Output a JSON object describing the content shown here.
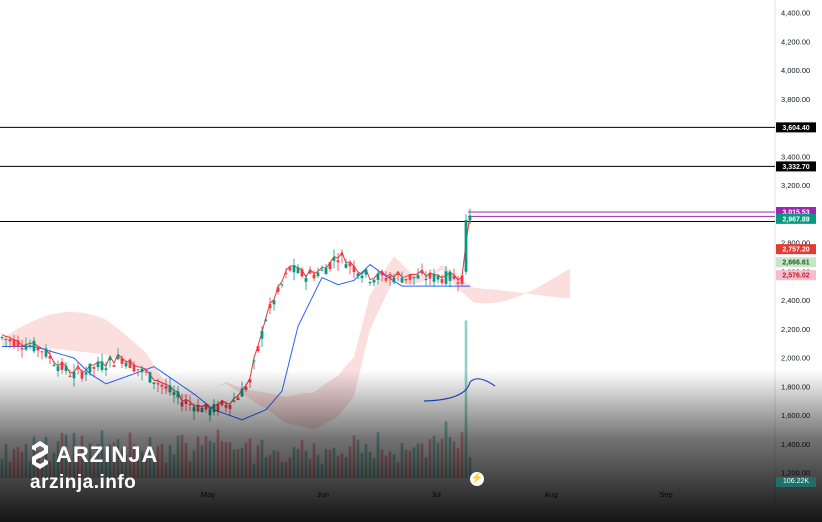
{
  "chart_data": {
    "type": "candlestick",
    "x_labels": [
      "May",
      "Jun",
      "Jul",
      "Aug",
      "Sep"
    ],
    "y_ticks": [
      1200,
      1400,
      1600,
      1800,
      2000,
      2200,
      2400,
      2600,
      2800,
      3000,
      3200,
      3400,
      3600,
      3800,
      4000,
      4200,
      4400
    ],
    "y_tick_labels": [
      "1,200.00",
      "1,400.00",
      "1,600.00",
      "1,800.00",
      "2,000.00",
      "2,200.00",
      "2,400.00",
      "2,600.00",
      "2,800.00",
      "3,000.00",
      "3,200.00",
      "3,400.00",
      "3,600.00",
      "3,800.00",
      "4,000.00",
      "4,200.00",
      "4,400.00"
    ],
    "ylim": [
      1150,
      4460
    ],
    "horizontal_levels": [
      3604.4,
      3332.7,
      2950.0
    ],
    "price_tags": [
      {
        "label": "3,604.40",
        "value": 3604.4,
        "bg": "#000000",
        "fg": "#ffffff"
      },
      {
        "label": "3,332.70",
        "value": 3332.7,
        "bg": "#000000",
        "fg": "#ffffff"
      },
      {
        "label": "3,015.53",
        "value": 3015.53,
        "bg": "#9c27b0",
        "fg": "#ffffff"
      },
      {
        "label": "2,967.89",
        "value": 2967.89,
        "bg": "#089981",
        "fg": "#ffffff"
      },
      {
        "label": "2,757.20",
        "value": 2757.2,
        "bg": "#e53935",
        "fg": "#ffffff"
      },
      {
        "label": "2,666.61",
        "value": 2666.61,
        "bg": "#c8e6c9",
        "fg": "#1b5e20"
      },
      {
        "label": "2,576.02",
        "value": 2576.02,
        "bg": "#f8bbd0",
        "fg": "#b71c1c"
      }
    ],
    "volume_label": "106.22K",
    "colors": {
      "up": "#089981",
      "down": "#f23645",
      "tenkan": "#e53935",
      "kijun": "#2962ff",
      "cloud_bull": "#c8e6c9",
      "cloud_bear": "#f8c4c4",
      "level": "#000000",
      "purple": "#9c27b0"
    }
  },
  "brand": {
    "name": "ARZINJA",
    "url": "arzinja.info"
  }
}
